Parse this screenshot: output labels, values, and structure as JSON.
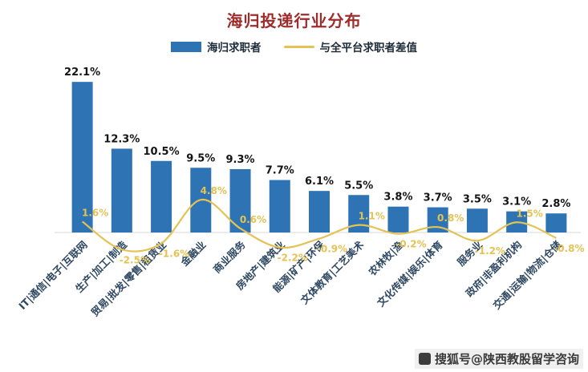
{
  "title": "海归投递行业分布",
  "legend": {
    "bar_label": "海归求职者",
    "line_label": "与全平台求职者差值"
  },
  "watermark": {
    "text": "搜狐号@陕西教股留学咨询"
  },
  "colors": {
    "bar": "#2e74b5",
    "line": "#e4c254",
    "title": "#9f2c2c",
    "bar_value_label": "#141414",
    "category_label": "#2e4861",
    "axis_line": "#d9d9d9",
    "legend_text": "#1d2b3a"
  },
  "chart_data": {
    "type": "bar",
    "title": "海归投递行业分布",
    "categories": [
      "IT|通信|电子|互联网",
      "生产|加工|制造",
      "贸易|批发|零售|租赁业",
      "金融业",
      "商业服务",
      "房地产|建筑业",
      "能源|矿产|环保",
      "文体教育|工艺美术",
      "农林牧|渔",
      "文化传媒|娱乐|体育",
      "服务业",
      "政府|非盈利机构",
      "交通|运输|物流|仓储"
    ],
    "series": [
      {
        "name": "海归求职者",
        "type": "bar",
        "unit": "%",
        "values": [
          22.1,
          12.3,
          10.5,
          9.5,
          9.3,
          7.7,
          6.1,
          5.5,
          3.8,
          3.7,
          3.5,
          3.1,
          2.8
        ]
      },
      {
        "name": "与全平台求职者差值",
        "type": "line",
        "unit": "%",
        "values": [
          1.6,
          -2.5,
          -1.6,
          4.8,
          0.6,
          -2.2,
          -0.9,
          1.1,
          -0.2,
          0.8,
          -1.2,
          1.5,
          -0.8
        ]
      }
    ],
    "ylim": [
      -4,
      24
    ],
    "grid": false,
    "legend_position": "top"
  }
}
